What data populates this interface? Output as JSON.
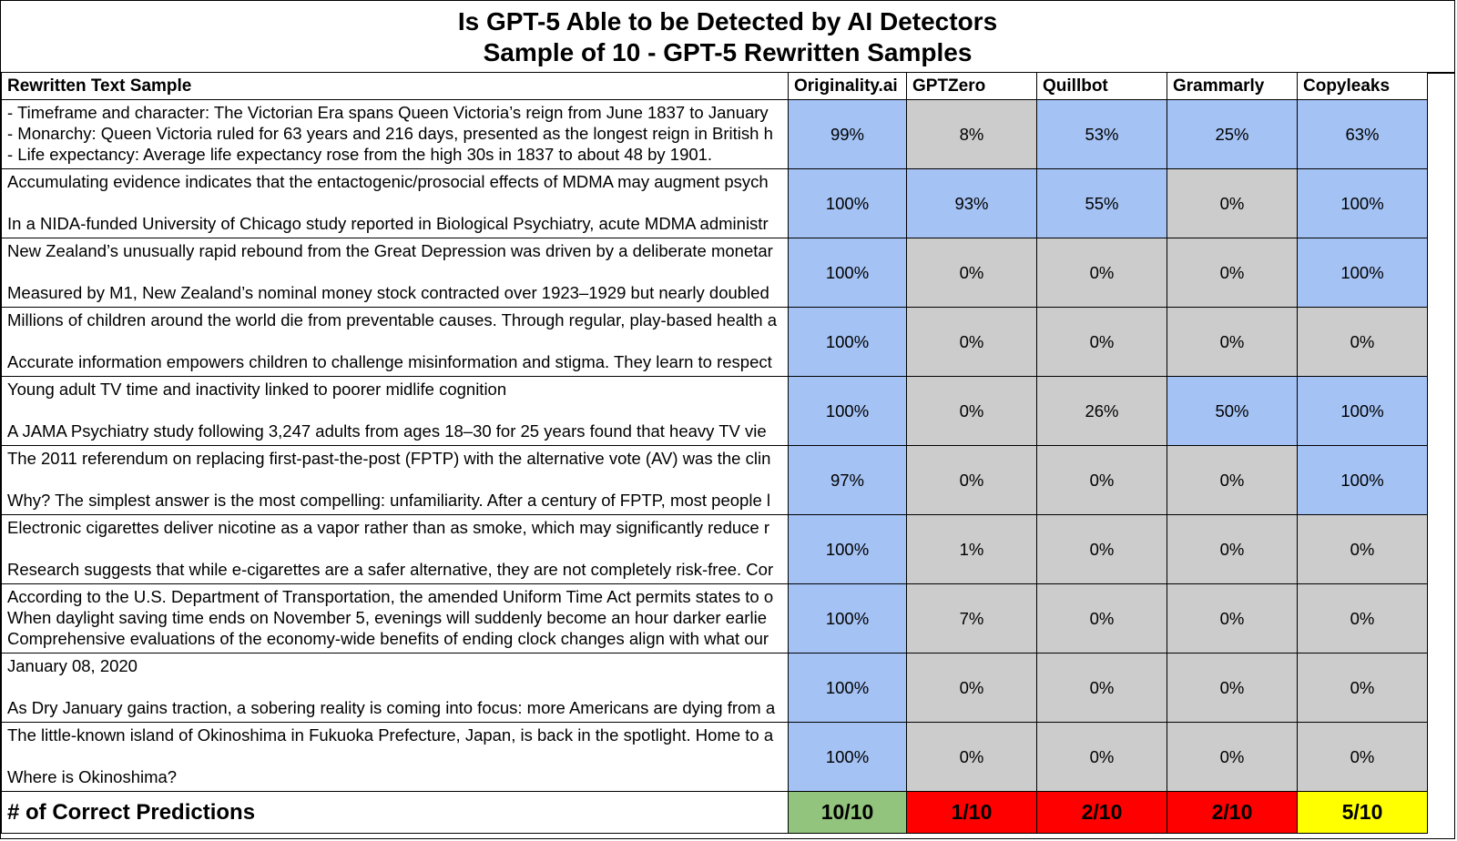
{
  "title": {
    "line1": "Is GPT-5 Able to be Detected by AI Detectors",
    "line2": "Sample of 10 - GPT-5 Rewritten Samples"
  },
  "headers": [
    "Rewritten Text Sample",
    "Originality.ai",
    "GPTZero",
    "Quillbot",
    "Grammarly",
    "Copyleaks"
  ],
  "colors": {
    "detected": "#a4c2f4",
    "not_detected": "#cccccc",
    "good": "#93c47d",
    "bad": "#ff0000",
    "medium": "#ffff00"
  },
  "rows": [
    {
      "sample": [
        "- Timeframe and character: The Victorian Era spans Queen Victoria’s reign from June 1837 to January",
        "- Monarchy: Queen Victoria ruled for 63 years and 216 days, presented as the longest reign in British h",
        "- Life expectancy: Average life expectancy rose from the high 30s in 1837 to about 48 by 1901."
      ],
      "values": [
        "99%",
        "8%",
        "53%",
        "25%",
        "63%"
      ],
      "detected": [
        true,
        false,
        true,
        true,
        true
      ]
    },
    {
      "sample": [
        "Accumulating evidence indicates that the entactogenic/prosocial effects of MDMA may augment psych",
        "",
        "In a NIDA-funded University of Chicago study reported in Biological Psychiatry, acute MDMA administr"
      ],
      "values": [
        "100%",
        "93%",
        "55%",
        "0%",
        "100%"
      ],
      "detected": [
        true,
        true,
        true,
        false,
        true
      ]
    },
    {
      "sample": [
        "New Zealand’s unusually rapid rebound from the Great Depression was driven by a deliberate monetar",
        "",
        "Measured by M1, New Zealand’s nominal money stock contracted over 1923–1929 but nearly doubled"
      ],
      "values": [
        "100%",
        "0%",
        "0%",
        "0%",
        "100%"
      ],
      "detected": [
        true,
        false,
        false,
        false,
        true
      ]
    },
    {
      "sample": [
        "Millions of children around the world die from preventable causes. Through regular, play-based health a",
        "",
        "Accurate information empowers children to challenge misinformation and stigma. They learn to respect"
      ],
      "values": [
        "100%",
        "0%",
        "0%",
        "0%",
        "0%"
      ],
      "detected": [
        true,
        false,
        false,
        false,
        false
      ]
    },
    {
      "sample": [
        "Young adult TV time and inactivity linked to poorer midlife cognition",
        "",
        "A JAMA Psychiatry study following 3,247 adults from ages 18–30 for 25 years found that heavy TV vie"
      ],
      "values": [
        "100%",
        "0%",
        "26%",
        "50%",
        "100%"
      ],
      "detected": [
        true,
        false,
        false,
        true,
        true
      ]
    },
    {
      "sample": [
        "The 2011 referendum on replacing first-past-the-post (FPTP) with the alternative vote (AV) was the clin",
        "",
        "Why? The simplest answer is the most compelling: unfamiliarity. After a century of FPTP, most people l"
      ],
      "values": [
        "97%",
        "0%",
        "0%",
        "0%",
        "100%"
      ],
      "detected": [
        true,
        false,
        false,
        false,
        true
      ]
    },
    {
      "sample": [
        "Electronic cigarettes deliver nicotine as a vapor rather than as smoke, which may significantly reduce r",
        "",
        "Research suggests that while e-cigarettes are a safer alternative, they are not completely risk-free. Cor"
      ],
      "values": [
        "100%",
        "1%",
        "0%",
        "0%",
        "0%"
      ],
      "detected": [
        true,
        false,
        false,
        false,
        false
      ]
    },
    {
      "sample": [
        "According to the U.S. Department of Transportation, the amended Uniform Time Act permits states to o",
        "When daylight saving time ends on November 5, evenings will suddenly become an hour darker earlie",
        "Comprehensive evaluations of the economy-wide benefits of ending clock changes align with what our"
      ],
      "values": [
        "100%",
        "7%",
        "0%",
        "0%",
        "0%"
      ],
      "detected": [
        true,
        false,
        false,
        false,
        false
      ]
    },
    {
      "sample": [
        "January 08, 2020",
        "",
        "As Dry January gains traction, a sobering reality is coming into focus: more Americans are dying from a"
      ],
      "values": [
        "100%",
        "0%",
        "0%",
        "0%",
        "0%"
      ],
      "detected": [
        true,
        false,
        false,
        false,
        false
      ]
    },
    {
      "sample": [
        "The little-known island of Okinoshima in Fukuoka Prefecture, Japan, is back in the spotlight. Home to a",
        "",
        "Where is Okinoshima?"
      ],
      "values": [
        "100%",
        "0%",
        "0%",
        "0%",
        "0%"
      ],
      "detected": [
        true,
        false,
        false,
        false,
        false
      ]
    }
  ],
  "totals": {
    "label": "# of Correct Predictions",
    "scores": [
      "10/10",
      "1/10",
      "2/10",
      "2/10",
      "5/10"
    ],
    "ratings": [
      "good",
      "bad",
      "bad",
      "bad",
      "medium"
    ]
  }
}
